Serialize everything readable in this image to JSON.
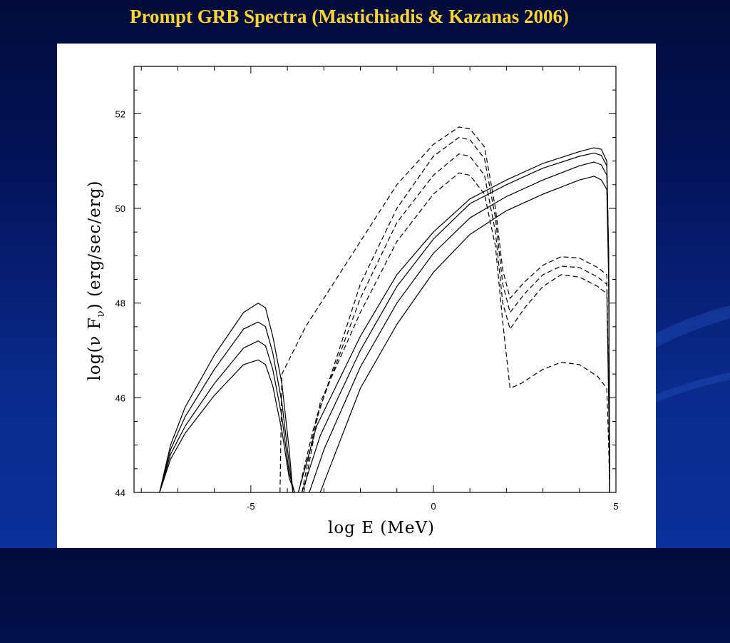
{
  "slide": {
    "title": "Prompt GRB Spectra (Mastichiadis & Kazanas 2006)"
  },
  "colors": {
    "background_top": "#020b3a",
    "background_bottom": "#0b309a",
    "title": "#ffd633",
    "panel": "#ffffff",
    "lines": "#000000"
  },
  "chart_data": {
    "type": "line",
    "xlabel": "log E (MeV)",
    "ylabel_main": "log(ν F",
    "ylabel_sub": "ν",
    "ylabel_tail": ") (erg/sec/erg)",
    "xlim": [
      -8.2,
      5
    ],
    "ylim": [
      44,
      53
    ],
    "xticks": [
      -5,
      0,
      5
    ],
    "yticks": [
      44,
      46,
      48,
      50,
      52
    ],
    "grid": false,
    "legend": "none",
    "series": [
      {
        "style": "solid",
        "points": [
          [
            -7.5,
            44
          ],
          [
            -7.2,
            45.0
          ],
          [
            -6.8,
            45.8
          ],
          [
            -6.0,
            46.9
          ],
          [
            -5.2,
            47.8
          ],
          [
            -4.8,
            48.0
          ],
          [
            -4.6,
            47.9
          ],
          [
            -4.4,
            47.3
          ],
          [
            -4.15,
            46.3
          ],
          [
            -3.95,
            44.9
          ],
          [
            -3.85,
            44
          ]
        ]
      },
      {
        "style": "solid",
        "points": [
          [
            -7.5,
            44
          ],
          [
            -7.2,
            44.9
          ],
          [
            -6.8,
            45.6
          ],
          [
            -6.0,
            46.6
          ],
          [
            -5.2,
            47.45
          ],
          [
            -4.8,
            47.6
          ],
          [
            -4.6,
            47.5
          ],
          [
            -4.4,
            46.95
          ],
          [
            -4.15,
            45.9
          ],
          [
            -3.95,
            44.6
          ],
          [
            -3.85,
            44
          ]
        ]
      },
      {
        "style": "solid",
        "points": [
          [
            -7.5,
            44
          ],
          [
            -7.2,
            44.8
          ],
          [
            -6.8,
            45.4
          ],
          [
            -6.0,
            46.3
          ],
          [
            -5.2,
            47.05
          ],
          [
            -4.8,
            47.2
          ],
          [
            -4.6,
            47.1
          ],
          [
            -4.4,
            46.6
          ],
          [
            -4.15,
            45.6
          ],
          [
            -3.95,
            44.4
          ],
          [
            -3.8,
            44
          ]
        ]
      },
      {
        "style": "solid",
        "points": [
          [
            -7.5,
            44
          ],
          [
            -7.2,
            44.7
          ],
          [
            -6.8,
            45.25
          ],
          [
            -6.0,
            46.05
          ],
          [
            -5.2,
            46.7
          ],
          [
            -4.8,
            46.8
          ],
          [
            -4.6,
            46.7
          ],
          [
            -4.4,
            46.25
          ],
          [
            -4.15,
            45.3
          ],
          [
            -3.95,
            44.3
          ],
          [
            -3.8,
            44
          ]
        ]
      },
      {
        "style": "solid",
        "points": [
          [
            -3.7,
            44
          ],
          [
            -3.2,
            45.4
          ],
          [
            -2.0,
            47.3
          ],
          [
            -1.0,
            48.6
          ],
          [
            0.0,
            49.5
          ],
          [
            1.0,
            50.2
          ],
          [
            2.0,
            50.6
          ],
          [
            3.0,
            50.95
          ],
          [
            4.0,
            51.2
          ],
          [
            4.4,
            51.28
          ],
          [
            4.6,
            51.25
          ],
          [
            4.75,
            51.0
          ],
          [
            4.8,
            49
          ],
          [
            4.83,
            44
          ]
        ]
      },
      {
        "style": "solid",
        "points": [
          [
            -3.6,
            44
          ],
          [
            -3.1,
            45.2
          ],
          [
            -2.0,
            47.0
          ],
          [
            -1.0,
            48.35
          ],
          [
            0.0,
            49.35
          ],
          [
            1.0,
            50.1
          ],
          [
            2.0,
            50.5
          ],
          [
            3.0,
            50.85
          ],
          [
            4.0,
            51.1
          ],
          [
            4.4,
            51.17
          ],
          [
            4.6,
            51.12
          ],
          [
            4.75,
            50.9
          ],
          [
            4.8,
            49
          ],
          [
            4.83,
            44
          ]
        ]
      },
      {
        "style": "solid",
        "points": [
          [
            -3.4,
            44
          ],
          [
            -3.0,
            44.9
          ],
          [
            -2.0,
            46.65
          ],
          [
            -1.0,
            48.0
          ],
          [
            0.0,
            49.05
          ],
          [
            1.0,
            49.8
          ],
          [
            2.0,
            50.25
          ],
          [
            3.0,
            50.6
          ],
          [
            4.0,
            50.9
          ],
          [
            4.4,
            50.98
          ],
          [
            4.6,
            50.92
          ],
          [
            4.75,
            50.7
          ],
          [
            4.8,
            49
          ],
          [
            4.83,
            44
          ]
        ]
      },
      {
        "style": "solid",
        "points": [
          [
            -3.1,
            44
          ],
          [
            -2.8,
            44.6
          ],
          [
            -2.0,
            46.2
          ],
          [
            -1.0,
            47.55
          ],
          [
            0.0,
            48.65
          ],
          [
            1.0,
            49.45
          ],
          [
            2.0,
            49.95
          ],
          [
            3.0,
            50.3
          ],
          [
            4.0,
            50.6
          ],
          [
            4.4,
            50.68
          ],
          [
            4.6,
            50.6
          ],
          [
            4.75,
            50.4
          ],
          [
            4.8,
            48.5
          ],
          [
            4.83,
            44
          ]
        ]
      },
      {
        "style": "dashed",
        "points": [
          [
            -4.2,
            44
          ],
          [
            -4.15,
            46.5
          ],
          [
            -3.5,
            47.5
          ],
          [
            -2.0,
            49.3
          ],
          [
            -1.0,
            50.5
          ],
          [
            0.0,
            51.35
          ],
          [
            0.7,
            51.72
          ],
          [
            1.0,
            51.68
          ],
          [
            1.4,
            51.3
          ],
          [
            1.7,
            50.0
          ],
          [
            1.9,
            48.7
          ],
          [
            2.1,
            48.1
          ],
          [
            2.5,
            48.45
          ],
          [
            3.0,
            48.8
          ],
          [
            3.5,
            48.98
          ],
          [
            4.0,
            48.95
          ],
          [
            4.5,
            48.75
          ],
          [
            4.75,
            48.6
          ],
          [
            4.8,
            46
          ],
          [
            4.83,
            44
          ]
        ]
      },
      {
        "style": "dashed",
        "points": [
          [
            -3.7,
            44
          ],
          [
            -3.3,
            45.3
          ],
          [
            -2.0,
            48.4
          ],
          [
            -1.0,
            50.0
          ],
          [
            0.0,
            51.1
          ],
          [
            0.7,
            51.5
          ],
          [
            1.0,
            51.45
          ],
          [
            1.4,
            51.05
          ],
          [
            1.7,
            49.8
          ],
          [
            1.9,
            48.4
          ],
          [
            2.1,
            47.8
          ],
          [
            2.5,
            48.2
          ],
          [
            3.0,
            48.6
          ],
          [
            3.5,
            48.78
          ],
          [
            4.0,
            48.75
          ],
          [
            4.5,
            48.55
          ],
          [
            4.75,
            48.4
          ],
          [
            4.8,
            46
          ],
          [
            4.83,
            44
          ]
        ]
      },
      {
        "style": "dashed",
        "points": [
          [
            -3.6,
            44
          ],
          [
            -3.2,
            45.6
          ],
          [
            -2.0,
            48.1
          ],
          [
            -1.0,
            49.7
          ],
          [
            0.0,
            50.7
          ],
          [
            0.7,
            51.15
          ],
          [
            1.0,
            51.1
          ],
          [
            1.4,
            50.7
          ],
          [
            1.7,
            49.5
          ],
          [
            1.9,
            48.0
          ],
          [
            2.1,
            47.45
          ],
          [
            2.5,
            47.9
          ],
          [
            3.0,
            48.35
          ],
          [
            3.5,
            48.6
          ],
          [
            4.0,
            48.55
          ],
          [
            4.5,
            48.35
          ],
          [
            4.75,
            48.2
          ],
          [
            4.8,
            46
          ],
          [
            4.83,
            44
          ]
        ]
      },
      {
        "style": "dashed",
        "points": [
          [
            -3.55,
            44
          ],
          [
            -3.1,
            45.9
          ],
          [
            -2.0,
            47.8
          ],
          [
            -1.0,
            49.3
          ],
          [
            0.0,
            50.3
          ],
          [
            0.7,
            50.75
          ],
          [
            1.0,
            50.7
          ],
          [
            1.4,
            50.3
          ],
          [
            1.7,
            49.2
          ],
          [
            1.9,
            47.6
          ],
          [
            2.1,
            46.2
          ],
          [
            2.4,
            46.3
          ],
          [
            3.0,
            46.6
          ],
          [
            3.5,
            46.75
          ],
          [
            4.0,
            46.7
          ],
          [
            4.5,
            46.45
          ],
          [
            4.75,
            46.2
          ],
          [
            4.8,
            45
          ],
          [
            4.83,
            44
          ]
        ]
      }
    ]
  }
}
